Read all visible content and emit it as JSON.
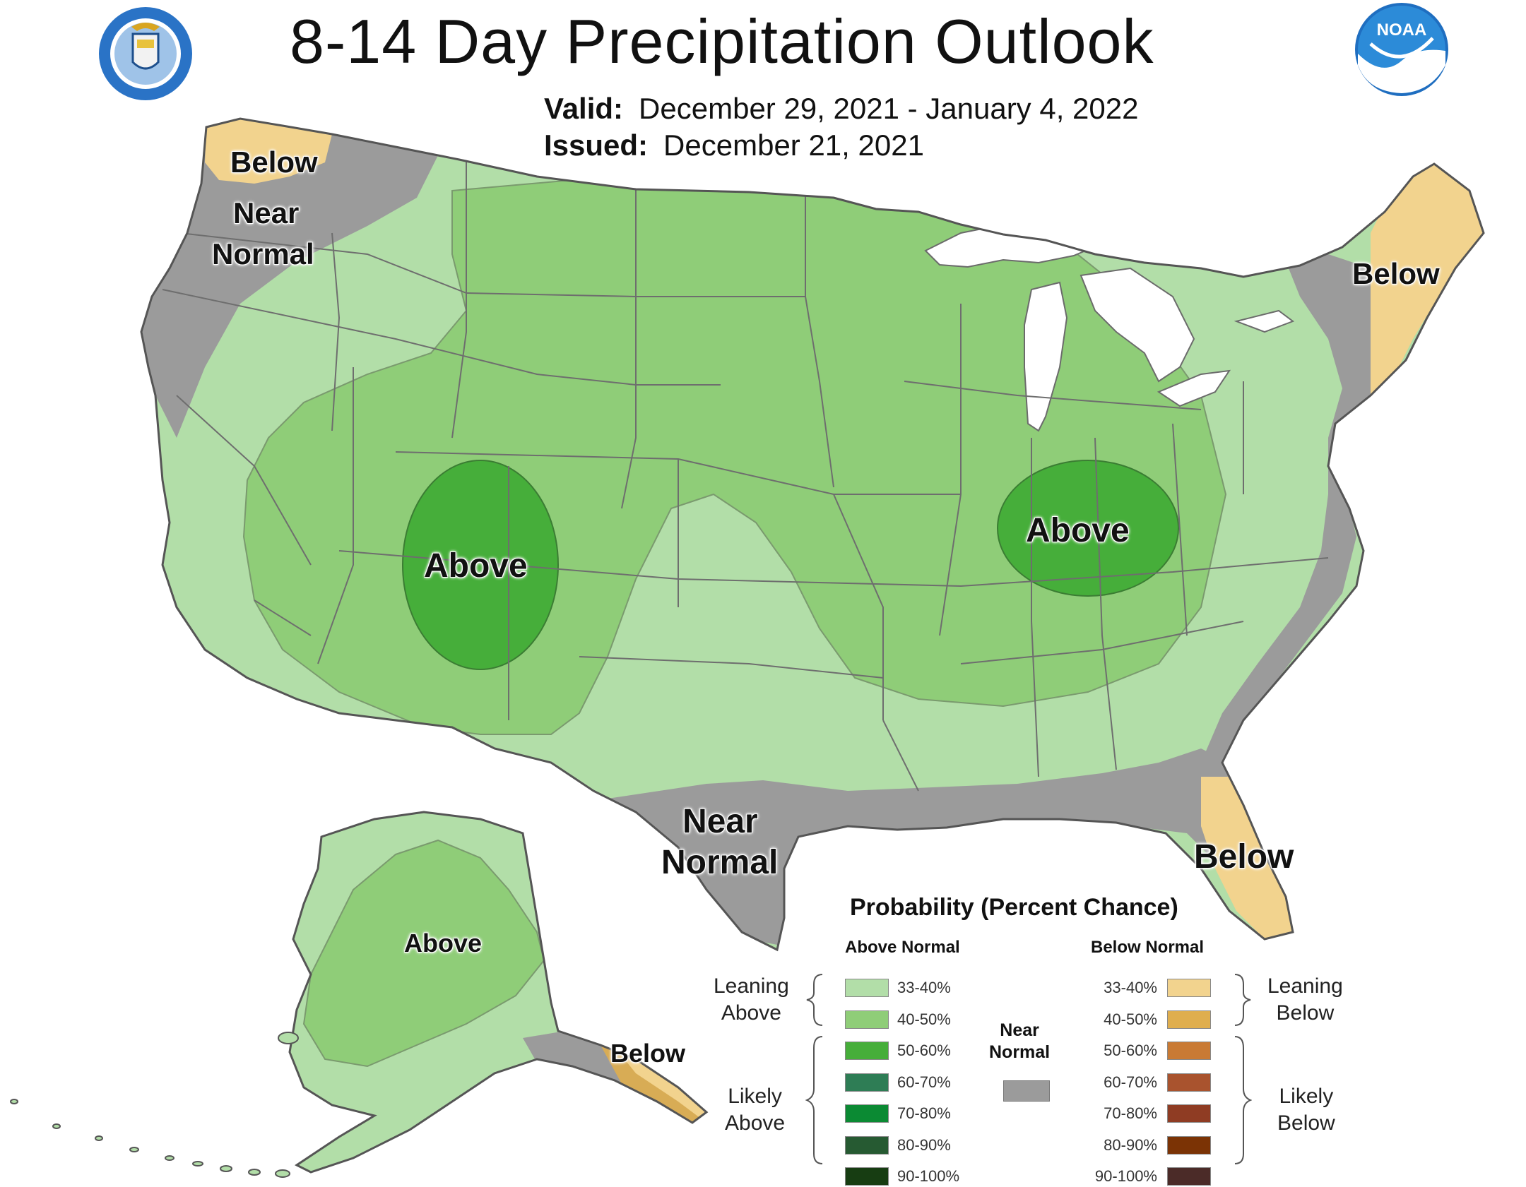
{
  "header": {
    "title": "8-14 Day Precipitation Outlook",
    "valid_label": "Valid:",
    "valid_value": "December 29, 2021 - January 4, 2022",
    "issued_label": "Issued:",
    "issued_value": "December 21, 2021"
  },
  "logos": {
    "left": "department-of-commerce-seal",
    "right": "noaa-logo",
    "right_text": "NOAA"
  },
  "map_labels": {
    "nw_below": "Below",
    "nw_near": "Near",
    "nw_normal": "Normal",
    "ne_below": "Below",
    "sw_above": "Above",
    "ohio_above": "Above",
    "tx_near": "Near",
    "tx_normal": "Normal",
    "fl_below": "Below",
    "ak_above": "Above",
    "ak_below": "Below"
  },
  "legend": {
    "title": "Probability (Percent Chance)",
    "above_header": "Above Normal",
    "below_header": "Below Normal",
    "leaning_above": [
      "Leaning",
      "Above"
    ],
    "likely_above": [
      "Likely",
      "Above"
    ],
    "leaning_below": [
      "Leaning",
      "Below"
    ],
    "likely_below": [
      "Likely",
      "Below"
    ],
    "near_normal": [
      "Near",
      "Normal"
    ],
    "near_normal_color": "#9b9b9b",
    "above": [
      {
        "range": "33-40%",
        "color": "#b2dea8"
      },
      {
        "range": "40-50%",
        "color": "#8fcd78"
      },
      {
        "range": "50-60%",
        "color": "#46ae3a"
      },
      {
        "range": "60-70%",
        "color": "#2e7d55"
      },
      {
        "range": "70-80%",
        "color": "#0b8a33"
      },
      {
        "range": "80-90%",
        "color": "#265a32"
      },
      {
        "range": "90-100%",
        "color": "#173d12"
      }
    ],
    "below": [
      {
        "range": "33-40%",
        "color": "#f2d38e"
      },
      {
        "range": "40-50%",
        "color": "#dfae4e"
      },
      {
        "range": "50-60%",
        "color": "#c97a34"
      },
      {
        "range": "60-70%",
        "color": "#a9532e"
      },
      {
        "range": "70-80%",
        "color": "#8f3c23"
      },
      {
        "range": "80-90%",
        "color": "#7b3305"
      },
      {
        "range": "90-100%",
        "color": "#4b2b28"
      }
    ]
  },
  "colors": {
    "leaning_above": "#b2dea8",
    "above_40_50": "#8fcd78",
    "above_50_60": "#46ae3a",
    "near_normal": "#9b9b9b",
    "leaning_below": "#f2d38e",
    "lakes": "#ffffff",
    "boundary": "#6b6b6b"
  }
}
